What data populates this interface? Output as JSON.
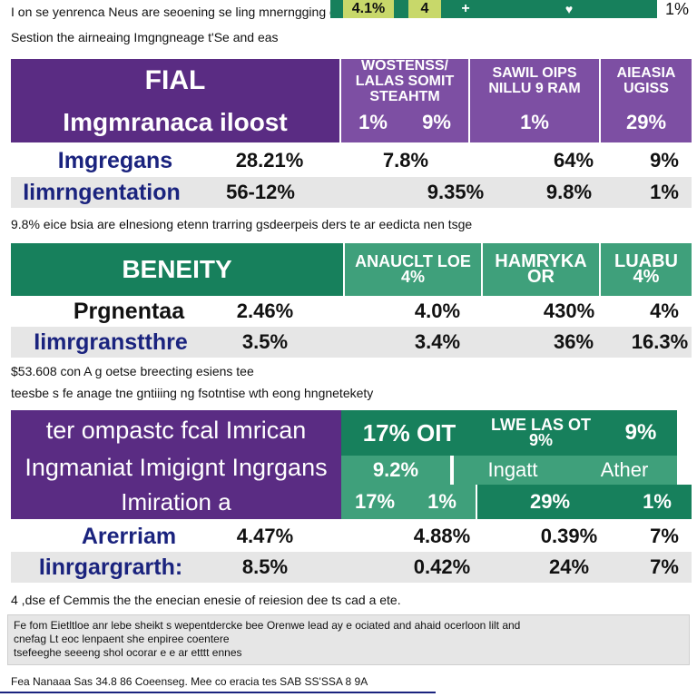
{
  "top": {
    "line1": "I on se yenrenca Neus are seoening se ling mnerngging of",
    "line2": "Sestion the airneaing Imgngneage t'Se and eas",
    "badge1": "4.1%",
    "badge2": "4",
    "badge3": "+",
    "badge4": "♥",
    "badge5": "1%"
  },
  "table1": {
    "title": "FIAL",
    "subtitle": "Imgmranaca iloost",
    "col_headers": [
      "WOSTENSS/ LALAS SOMIT STEAHTM",
      "SAWIL OIPS NILLU 9 RAM",
      "AIEASIA UGISS"
    ],
    "header_values": [
      "1%",
      "9%",
      "1%",
      "29%"
    ],
    "rows": [
      {
        "label": "Imgregans",
        "values": [
          "28.21%",
          "7.8%",
          "64%",
          "9%"
        ]
      },
      {
        "label": "Iimrngentation",
        "values": [
          "56-12%",
          "9.35%",
          "9.8%",
          "1%"
        ]
      }
    ]
  },
  "note1": "9.8% eice bsia are elnesiong etenn trarring gsdeerpeis ders te ar eedicta nen tsge",
  "table2": {
    "title": "BENEITY",
    "col_headers": [
      "ANAUCLT LOE 4%",
      "HAMRYKA OR",
      "LUABU 4%"
    ],
    "rows": [
      {
        "label": "Prgnentaa",
        "values": [
          "2.46%",
          "4.0%",
          "430%",
          "4%"
        ]
      },
      {
        "label": "Iimrgranstthre",
        "values": [
          "3.5%",
          "3.4%",
          "36%",
          "16.3%"
        ]
      }
    ]
  },
  "note2": "$53.608 con A g oetse breecting esiens tee",
  "note3": "teesbe s fe anage tne gntiiing ng fsotntise wth eong hngnetekety",
  "table3": {
    "title_line1": "ter ompastc fcal Imrican",
    "title_line2": "Ingmaniat Imigignt Ingrgans",
    "title_line3": "Imiration a",
    "hdr_a": "17% OIT",
    "hdr_b": "LWE LAS OT 9%",
    "hdr_c": "9%",
    "mid_a": "9.2%",
    "mid_b": "Ingatt",
    "mid_c": "Ather",
    "header_values": [
      "17%",
      "1%",
      "29%",
      "1%"
    ],
    "rows": [
      {
        "label": "Arerriam",
        "values": [
          "4.47%",
          "4.88%",
          "0.39%",
          "7%"
        ]
      },
      {
        "label": "Iinrgargrarth:",
        "values": [
          "8.5%",
          "0.42%",
          "24%",
          "7%"
        ]
      }
    ]
  },
  "note4": "4 ,dse ef Cemmis the the enecian enesie of reiesion dee ts cad a ete.",
  "box": {
    "line1": "Fe fom Eietltloe anr lebe sheikt s wepentdercke bee Orenwe lead ay e ociated and ahaid ocerloon lilt and",
    "line2": "cnefag Lt eoc lenpaent she enpiree coentere",
    "line3": "tsefeeghe seeeng shol ocorar e e ar etttt ennes"
  },
  "footer": "Fea Nanaaa Sas 34.8 86 Coeenseg. Mee co eracia tes SAB SS'SSA 8 9A"
}
